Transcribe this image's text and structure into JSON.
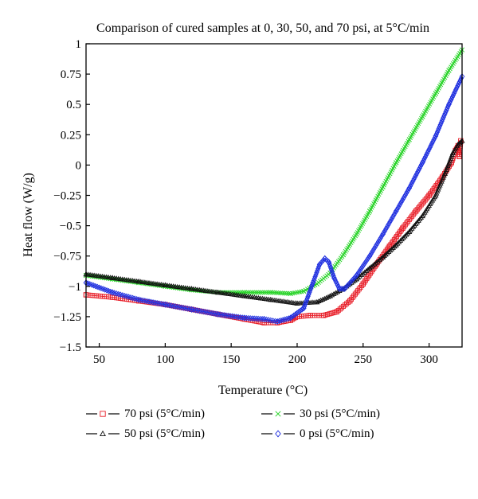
{
  "chart_data": {
    "type": "line",
    "title": "Comparison of cured samples at 0, 30, 50, and 70 psi, at 5°C/min",
    "xlabel": "Temperature (°C)",
    "ylabel": "Heat flow (W/g)",
    "xlim": [
      40,
      325
    ],
    "ylim": [
      -1.5,
      1
    ],
    "xticks": [
      50,
      100,
      150,
      200,
      250,
      300
    ],
    "xtick_labels": [
      "50",
      "100",
      "150",
      "200",
      "250",
      "300"
    ],
    "yticks": [
      -1.5,
      -1.25,
      -1,
      -0.75,
      -0.5,
      -0.25,
      0,
      0.25,
      0.5,
      0.75,
      1
    ],
    "ytick_labels": [
      "−1.5",
      "−1.25",
      "−1",
      "−0.75",
      "−0.5",
      "−0.25",
      "0",
      "0.25",
      "0.5",
      "0.75",
      "1"
    ],
    "grid": false,
    "legend_position": "bottom",
    "series": [
      {
        "name": "70 psi (5°C/min)",
        "color": "#e8202a",
        "marker": "square",
        "points": [
          [
            40,
            -1.07
          ],
          [
            60,
            -1.09
          ],
          [
            80,
            -1.12
          ],
          [
            100,
            -1.15
          ],
          [
            120,
            -1.19
          ],
          [
            140,
            -1.23
          ],
          [
            160,
            -1.27
          ],
          [
            175,
            -1.3
          ],
          [
            185,
            -1.3
          ],
          [
            195,
            -1.28
          ],
          [
            200,
            -1.25
          ],
          [
            210,
            -1.24
          ],
          [
            220,
            -1.24
          ],
          [
            230,
            -1.21
          ],
          [
            240,
            -1.12
          ],
          [
            250,
            -0.98
          ],
          [
            260,
            -0.82
          ],
          [
            270,
            -0.67
          ],
          [
            280,
            -0.52
          ],
          [
            290,
            -0.38
          ],
          [
            300,
            -0.25
          ],
          [
            310,
            -0.1
          ],
          [
            317,
            0.02
          ],
          [
            320,
            0.12
          ],
          [
            322,
            0.16
          ],
          [
            323,
            0.07
          ],
          [
            324,
            0.2
          ]
        ]
      },
      {
        "name": "30 psi (5°C/min)",
        "color": "#2bd42b",
        "marker": "x",
        "points": [
          [
            40,
            -0.91
          ],
          [
            60,
            -0.94
          ],
          [
            80,
            -0.97
          ],
          [
            100,
            -1.0
          ],
          [
            120,
            -1.03
          ],
          [
            140,
            -1.05
          ],
          [
            160,
            -1.05
          ],
          [
            180,
            -1.05
          ],
          [
            195,
            -1.06
          ],
          [
            205,
            -1.04
          ],
          [
            215,
            -0.98
          ],
          [
            225,
            -0.89
          ],
          [
            235,
            -0.74
          ],
          [
            245,
            -0.57
          ],
          [
            255,
            -0.38
          ],
          [
            265,
            -0.18
          ],
          [
            275,
            0.02
          ],
          [
            285,
            0.21
          ],
          [
            295,
            0.4
          ],
          [
            305,
            0.59
          ],
          [
            315,
            0.78
          ],
          [
            325,
            0.95
          ]
        ]
      },
      {
        "name": "50 psi (5°C/min)",
        "color": "#111111",
        "marker": "triangle",
        "points": [
          [
            40,
            -0.9
          ],
          [
            60,
            -0.93
          ],
          [
            80,
            -0.96
          ],
          [
            100,
            -0.99
          ],
          [
            120,
            -1.02
          ],
          [
            140,
            -1.05
          ],
          [
            160,
            -1.08
          ],
          [
            180,
            -1.11
          ],
          [
            200,
            -1.14
          ],
          [
            215,
            -1.13
          ],
          [
            225,
            -1.08
          ],
          [
            235,
            -1.02
          ],
          [
            245,
            -0.94
          ],
          [
            255,
            -0.85
          ],
          [
            265,
            -0.76
          ],
          [
            275,
            -0.66
          ],
          [
            285,
            -0.55
          ],
          [
            295,
            -0.42
          ],
          [
            305,
            -0.25
          ],
          [
            312,
            -0.07
          ],
          [
            318,
            0.1
          ],
          [
            322,
            0.17
          ],
          [
            325,
            0.2
          ]
        ]
      },
      {
        "name": "0 psi (5°C/min)",
        "color": "#2030e0",
        "marker": "diamond",
        "points": [
          [
            40,
            -0.97
          ],
          [
            60,
            -1.05
          ],
          [
            80,
            -1.11
          ],
          [
            100,
            -1.15
          ],
          [
            120,
            -1.19
          ],
          [
            140,
            -1.23
          ],
          [
            160,
            -1.26
          ],
          [
            175,
            -1.27
          ],
          [
            185,
            -1.29
          ],
          [
            195,
            -1.26
          ],
          [
            205,
            -1.18
          ],
          [
            212,
            -0.97
          ],
          [
            217,
            -0.82
          ],
          [
            221,
            -0.77
          ],
          [
            224,
            -0.8
          ],
          [
            228,
            -0.93
          ],
          [
            232,
            -1.02
          ],
          [
            236,
            -1.02
          ],
          [
            245,
            -0.91
          ],
          [
            255,
            -0.75
          ],
          [
            265,
            -0.57
          ],
          [
            275,
            -0.38
          ],
          [
            285,
            -0.19
          ],
          [
            295,
            0.02
          ],
          [
            305,
            0.24
          ],
          [
            315,
            0.5
          ],
          [
            325,
            0.73
          ]
        ]
      }
    ]
  }
}
